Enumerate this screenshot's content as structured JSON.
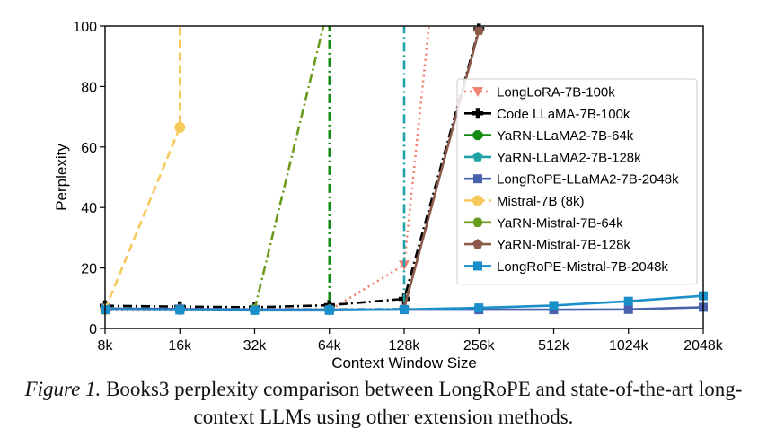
{
  "caption": {
    "label": "Figure 1.",
    "text": "Books3 perplexity comparison between LongRoPE and state-of-the-art long-context LLMs using other extension methods."
  },
  "chart_data": {
    "type": "line",
    "title": "",
    "xlabel": "Context Window Size",
    "ylabel": "Perplexity",
    "categories": [
      "8k",
      "16k",
      "32k",
      "64k",
      "128k",
      "256k",
      "512k",
      "1024k",
      "2048k"
    ],
    "ylim": [
      0,
      100
    ],
    "yticks": [
      0,
      20,
      40,
      60,
      80,
      100
    ],
    "legend_position": "right",
    "series": [
      {
        "name": "LongLoRA-7B-100k",
        "color": "#f08070",
        "dash": "dotted",
        "marker": "triangle-down",
        "points": [
          {
            "x": 0,
            "y": 6
          },
          {
            "x": 1,
            "y": 6
          },
          {
            "x": 2,
            "y": 6
          },
          {
            "x": 3,
            "y": 6
          },
          {
            "x": 4,
            "y": 21
          },
          {
            "x": 4.33,
            "y": 100
          }
        ]
      },
      {
        "name": "Code LLaMA-7B-100k",
        "color": "#000000",
        "dash": "dashdot",
        "marker": "plus",
        "points": [
          {
            "x": 0,
            "y": 7.5
          },
          {
            "x": 1,
            "y": 7.2
          },
          {
            "x": 2,
            "y": 7
          },
          {
            "x": 3,
            "y": 7.7
          },
          {
            "x": 4,
            "y": 9.8
          },
          {
            "x": 5,
            "y": 99
          }
        ]
      },
      {
        "name": "YaRN-LLaMA2-7B-64k",
        "color": "#128a12",
        "dash": "dashdot",
        "marker": "octagon",
        "points": [
          {
            "x": 0,
            "y": 6.5
          },
          {
            "x": 1,
            "y": 6.3
          },
          {
            "x": 2,
            "y": 6.2
          },
          {
            "x": 3,
            "y": 6.2
          },
          {
            "x": 3,
            "y": 100
          }
        ]
      },
      {
        "name": "YaRN-LLaMA2-7B-128k",
        "color": "#1fa3a6",
        "dash": "dashdot",
        "marker": "pentagon",
        "points": [
          {
            "x": 0,
            "y": 6.7
          },
          {
            "x": 1,
            "y": 6.5
          },
          {
            "x": 2,
            "y": 6.4
          },
          {
            "x": 3,
            "y": 6.3
          },
          {
            "x": 4,
            "y": 6.4
          },
          {
            "x": 4,
            "y": 100
          }
        ]
      },
      {
        "name": "LongRoPE-LLaMA2-7B-2048k",
        "color": "#4a62ad",
        "dash": "solid",
        "marker": "square",
        "points": [
          {
            "x": 0,
            "y": 6.6
          },
          {
            "x": 1,
            "y": 6.4
          },
          {
            "x": 2,
            "y": 6.3
          },
          {
            "x": 3,
            "y": 6.2
          },
          {
            "x": 4,
            "y": 6.2
          },
          {
            "x": 5,
            "y": 6.2
          },
          {
            "x": 6,
            "y": 6.2
          },
          {
            "x": 7,
            "y": 6.3
          },
          {
            "x": 8,
            "y": 7
          }
        ]
      },
      {
        "name": "Mistral-7B (8k)",
        "color": "#f5c95a",
        "dash": "dashed",
        "marker": "circle",
        "points": [
          {
            "x": 0,
            "y": 6.2
          },
          {
            "x": 1,
            "y": 66.5
          },
          {
            "x": 1,
            "y": 100
          }
        ]
      },
      {
        "name": "YaRN-Mistral-7B-64k",
        "color": "#6a9a1a",
        "dash": "dashdot",
        "marker": "hexagon",
        "points": [
          {
            "x": 2,
            "y": 6.3
          },
          {
            "x": 2.92,
            "y": 100
          }
        ]
      },
      {
        "name": "YaRN-Mistral-7B-128k",
        "color": "#8b5a4a",
        "dash": "solid",
        "marker": "pentagon",
        "points": [
          {
            "x": 4,
            "y": 6.6
          },
          {
            "x": 5,
            "y": 98.5
          }
        ]
      },
      {
        "name": "LongRoPE-Mistral-7B-2048k",
        "color": "#1a8fc9",
        "dash": "solid",
        "marker": "square",
        "points": [
          {
            "x": 0,
            "y": 6.2
          },
          {
            "x": 1,
            "y": 6.1
          },
          {
            "x": 2,
            "y": 6
          },
          {
            "x": 3,
            "y": 6
          },
          {
            "x": 4,
            "y": 6.3
          },
          {
            "x": 5,
            "y": 6.8
          },
          {
            "x": 6,
            "y": 7.6
          },
          {
            "x": 7,
            "y": 9
          },
          {
            "x": 8,
            "y": 10.8
          }
        ]
      }
    ]
  }
}
